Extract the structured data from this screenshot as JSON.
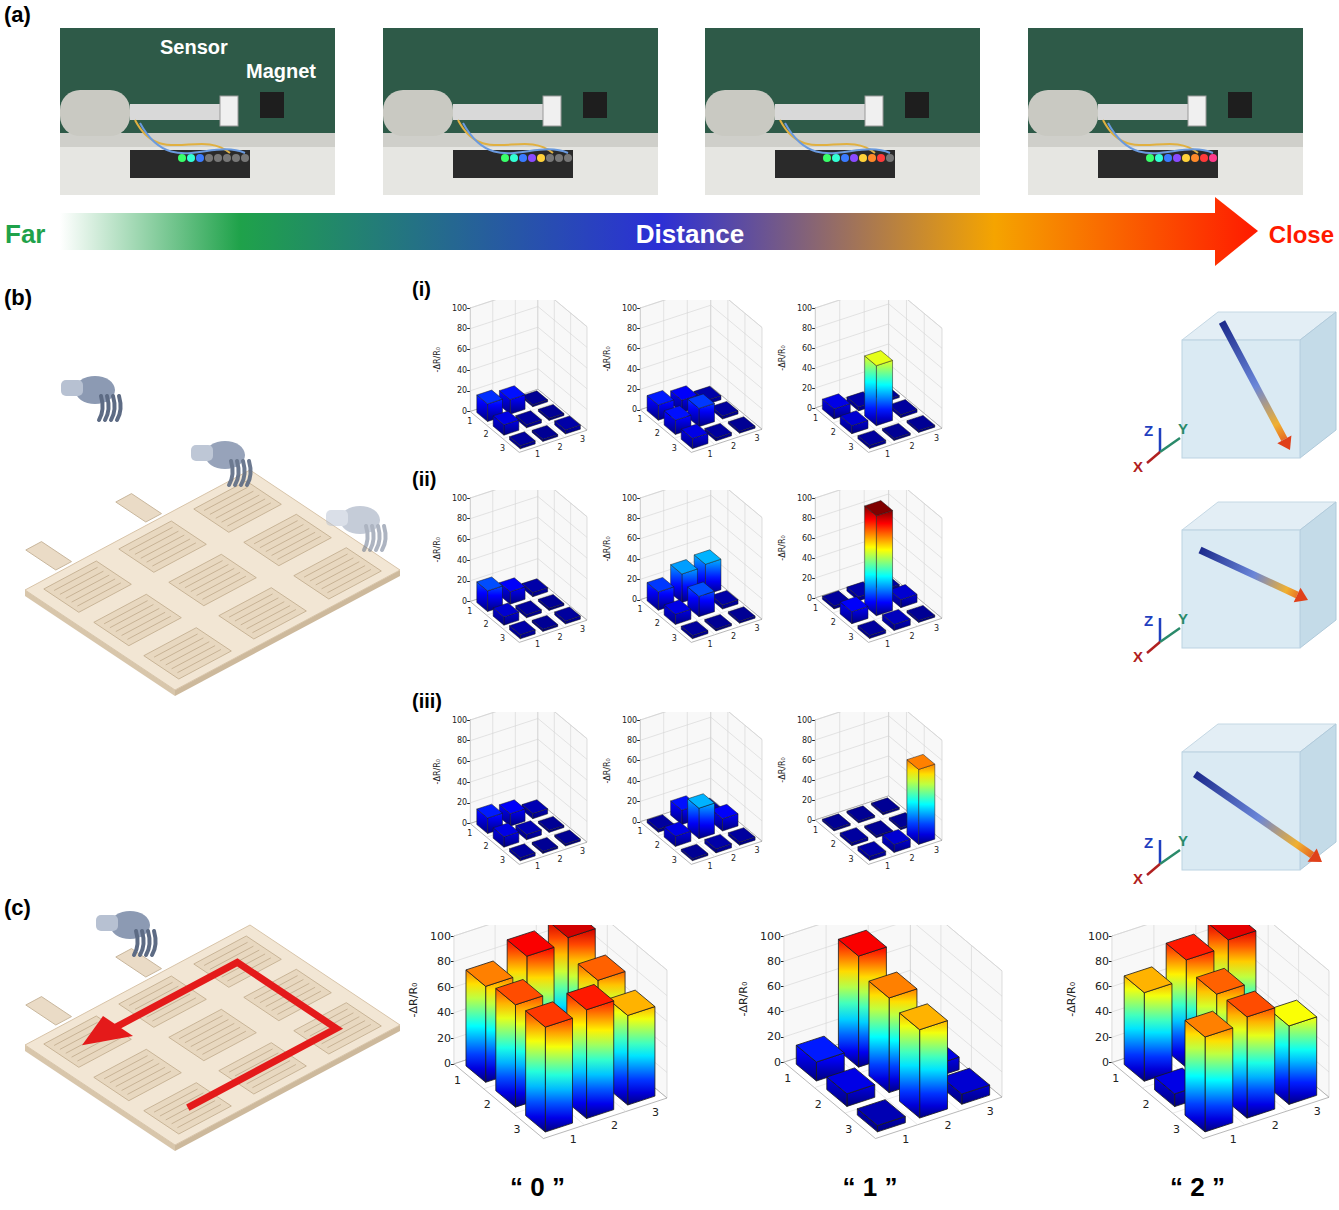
{
  "panel_labels": [
    "(a)",
    "(b)",
    "(c)"
  ],
  "photo_labels": [
    "Sensor",
    "Magnet"
  ],
  "distance_arrow": {
    "start": "Far",
    "middle": "Distance",
    "end": "Close"
  },
  "row_labels": [
    "(i)",
    "(ii)",
    "(iii)"
  ],
  "axis_letters": {
    "x": "X",
    "y": "Y",
    "z": "Z"
  },
  "chart_data": [
    {
      "type": "bar3d",
      "rows": [
        1,
        2,
        3
      ],
      "columns": [
        1,
        2,
        3
      ],
      "values": [
        [
          17,
          14,
          2
        ],
        [
          10,
          3,
          2
        ],
        [
          3,
          2,
          4
        ]
      ],
      "ylabel": "-ΔR/R₀",
      "ylim": [
        0,
        100
      ],
      "yticks": [
        0,
        20,
        40,
        60,
        80,
        100
      ],
      "grid": true
    },
    {
      "type": "bar3d",
      "rows": [
        1,
        2,
        3
      ],
      "columns": [
        1,
        2,
        3
      ],
      "values": [
        [
          15,
          12,
          4
        ],
        [
          14,
          18,
          3
        ],
        [
          10,
          3,
          2
        ]
      ],
      "ylabel": "-ΔR/R₀",
      "ylim": [
        0,
        100
      ],
      "yticks": [
        0,
        20,
        40,
        60,
        80,
        100
      ],
      "grid": true
    },
    {
      "type": "bar3d",
      "rows": [
        1,
        2,
        3
      ],
      "columns": [
        1,
        2,
        3
      ],
      "values": [
        [
          10,
          4,
          2
        ],
        [
          8,
          60,
          3
        ],
        [
          3,
          2,
          2
        ]
      ],
      "ylabel": "-ΔR/R₀",
      "ylim": [
        0,
        100
      ],
      "yticks": [
        0,
        20,
        40,
        60,
        80,
        100
      ],
      "grid": true
    },
    {
      "type": "bar3d",
      "rows": [
        1,
        2,
        3
      ],
      "columns": [
        1,
        2,
        3
      ],
      "values": [
        [
          20,
          12,
          4
        ],
        [
          8,
          3,
          2
        ],
        [
          4,
          2,
          3
        ]
      ],
      "ylabel": "-ΔR/R₀",
      "ylim": [
        0,
        100
      ],
      "yticks": [
        0,
        20,
        40,
        60,
        80,
        100
      ],
      "grid": true
    },
    {
      "type": "bar3d",
      "rows": [
        1,
        2,
        3
      ],
      "columns": [
        1,
        2,
        3
      ],
      "values": [
        [
          18,
          28,
          30
        ],
        [
          10,
          20,
          4
        ],
        [
          3,
          2,
          2
        ]
      ],
      "ylabel": "-ΔR/R₀",
      "ylim": [
        0,
        100
      ],
      "yticks": [
        0,
        20,
        40,
        60,
        80,
        100
      ],
      "grid": true
    },
    {
      "type": "bar3d",
      "rows": [
        1,
        2,
        3
      ],
      "columns": [
        1,
        2,
        3
      ],
      "values": [
        [
          3,
          4,
          3
        ],
        [
          12,
          100,
          8
        ],
        [
          3,
          6,
          2
        ]
      ],
      "ylabel": "-ΔR/R₀",
      "ylim": [
        0,
        100
      ],
      "yticks": [
        0,
        20,
        40,
        60,
        80,
        100
      ],
      "grid": true
    },
    {
      "type": "bar3d",
      "rows": [
        1,
        2,
        3
      ],
      "columns": [
        1,
        2,
        3
      ],
      "values": [
        [
          15,
          12,
          5
        ],
        [
          10,
          5,
          2
        ],
        [
          3,
          2,
          2
        ]
      ],
      "ylabel": "-ΔR/R₀",
      "ylim": [
        0,
        100
      ],
      "yticks": [
        0,
        20,
        40,
        60,
        80,
        100
      ],
      "grid": true
    },
    {
      "type": "bar3d",
      "rows": [
        1,
        2,
        3
      ],
      "columns": [
        1,
        2,
        3
      ],
      "values": [
        [
          3,
          14,
          4
        ],
        [
          10,
          30,
          12
        ],
        [
          2,
          4,
          3
        ]
      ],
      "ylabel": "-ΔR/R₀",
      "ylim": [
        0,
        100
      ],
      "yticks": [
        0,
        20,
        40,
        60,
        80,
        100
      ],
      "grid": true
    },
    {
      "type": "bar3d",
      "rows": [
        1,
        2,
        3
      ],
      "columns": [
        1,
        2,
        3
      ],
      "values": [
        [
          2,
          2,
          2
        ],
        [
          3,
          2,
          2
        ],
        [
          4,
          8,
          75
        ]
      ],
      "ylabel": "-ΔR/R₀",
      "ylim": [
        0,
        100
      ],
      "yticks": [
        0,
        20,
        40,
        60,
        80,
        100
      ],
      "grid": true
    },
    {
      "type": "bar3d",
      "title": "“ 0 ”",
      "rows": [
        1,
        2,
        3
      ],
      "columns": [
        1,
        2,
        3
      ],
      "values": [
        [
          75,
          88,
          92
        ],
        [
          80,
          3,
          78
        ],
        [
          82,
          85,
          70
        ]
      ],
      "ylabel": "-ΔR/R₀",
      "ylim": [
        0,
        100
      ],
      "yticks": [
        0,
        20,
        40,
        60,
        80,
        100
      ],
      "grid": true
    },
    {
      "type": "bar3d",
      "title": "“ 1 ”",
      "rows": [
        1,
        2,
        3
      ],
      "columns": [
        1,
        2,
        3
      ],
      "values": [
        [
          15,
          88,
          5
        ],
        [
          10,
          75,
          10
        ],
        [
          5,
          70,
          8
        ]
      ],
      "ylabel": "-ΔR/R₀",
      "ylim": [
        0,
        100
      ],
      "yticks": [
        0,
        20,
        40,
        60,
        80,
        100
      ],
      "grid": true
    },
    {
      "type": "bar3d",
      "title": "“ 2 ”",
      "rows": [
        1,
        2,
        3
      ],
      "columns": [
        1,
        2,
        3
      ],
      "values": [
        [
          70,
          85,
          90
        ],
        [
          10,
          78,
          4
        ],
        [
          75,
          80,
          62
        ]
      ],
      "ylabel": "-ΔR/R₀",
      "ylim": [
        0,
        100
      ],
      "yticks": [
        0,
        20,
        40,
        60,
        80,
        100
      ],
      "grid": true
    }
  ]
}
